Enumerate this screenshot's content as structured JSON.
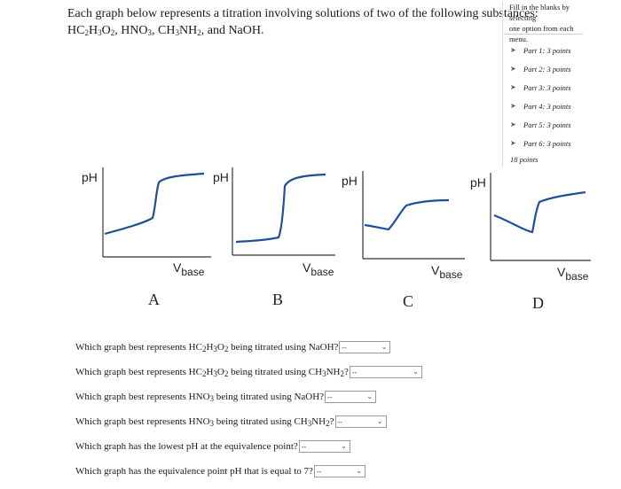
{
  "intro": {
    "line1": "Each graph below represents a titration involving solutions of two of the following substances:",
    "line2": {
      "s1": "HC",
      "s1a": "2",
      "s1b": "H",
      "s1c": "3",
      "s1d": "O",
      "s1e": "2",
      "sep1": ", HNO",
      "hno3_sub": "3",
      "sep2": ", CH",
      "ch3_sub": "3",
      "nh2": "NH",
      "nh2_sub": "2",
      "tail": ", and NaOH."
    }
  },
  "sidebar": {
    "instruction_line1": "Fill in the blanks by selecting",
    "instruction_line2": "one option from each menu.",
    "parts": [
      {
        "label": "Part 1: 3 points",
        "icon": "points-icon"
      },
      {
        "label": "Part 2: 3 points",
        "icon": "points-icon"
      },
      {
        "label": "Part 3: 3 points",
        "icon": "points-icon"
      },
      {
        "label": "Part 4: 3 points",
        "icon": "points-icon"
      },
      {
        "label": "Part 5: 3 points",
        "icon": "points-icon"
      },
      {
        "label": "Part 6: 3 points",
        "icon": "points-icon"
      }
    ],
    "total": "18 points"
  },
  "graphs": [
    {
      "letter": "A",
      "ylabel": "pH",
      "xlabel_v": "V",
      "xlabel_sub": "base"
    },
    {
      "letter": "B",
      "ylabel": "pH",
      "xlabel_v": "V",
      "xlabel_sub": "base"
    },
    {
      "letter": "C",
      "ylabel": "pH",
      "xlabel_v": "V",
      "xlabel_sub": "base"
    },
    {
      "letter": "D",
      "ylabel": "pH",
      "xlabel_v": "V",
      "xlabel_sub": "base"
    }
  ],
  "questions": [
    {
      "pre": "Which graph best represents HC",
      "parts": [
        "2",
        "H",
        "3",
        "O",
        "2"
      ],
      "post": " being titrated using NaOH?",
      "selected": "--"
    },
    {
      "pre": "Which graph best represents HC",
      "parts": [
        "2",
        "H",
        "3",
        "O",
        "2"
      ],
      "post": " being titrated using CH",
      "post2": "NH",
      "post3": "?",
      "sub1": "3",
      "sub2": "2",
      "selected": "--"
    },
    {
      "pre": "Which graph best represents HNO",
      "sub": "3",
      "post": " being titrated using NaOH?",
      "selected": "--"
    },
    {
      "pre": "Which graph best represents HNO",
      "sub": "3",
      "post": " being titrated using CH",
      "post2": "NH",
      "post3": "?",
      "sub1": "3",
      "sub2": "2",
      "selected": "--"
    },
    {
      "pre": "Which graph has the lowest pH at the equivalence point?",
      "selected": "--"
    },
    {
      "pre": "Which graph has the equivalence point pH that is equal to 7?",
      "selected": "--"
    }
  ]
}
